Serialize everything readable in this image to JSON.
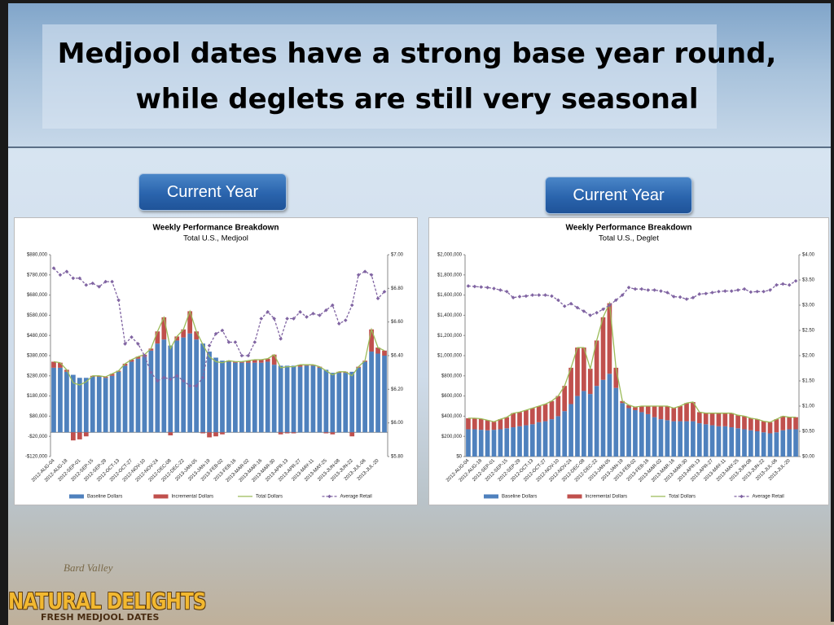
{
  "slide_title": [
    "Medjool dates have a strong base year round,",
    "while deglets are still very seasonal"
  ],
  "buttons": [
    "Current Year",
    "Current Year"
  ],
  "logo": {
    "script": "Bard Valley",
    "brand": "NATURAL DELIGHTS",
    "tagline": "FRESH MEDJOOL DATES"
  },
  "chart_data": [
    {
      "type": "combo",
      "stacked": true,
      "grid": false,
      "legend": "bottom",
      "title": "Weekly Performance Breakdown",
      "subtitle": "Total U.S., Medjool",
      "categories": [
        "2012-AUG-04",
        null,
        "2012-AUG-18",
        null,
        "2012-SEP-01",
        null,
        "2012-SEP-15",
        null,
        "2012-SEP-29",
        null,
        "2012-OCT-13",
        null,
        "2012-OCT-27",
        null,
        "2012-NOV-10",
        null,
        "2012-NOV-24",
        null,
        "2012-DEC-08",
        null,
        "2012-DEC-22",
        null,
        "2013-JAN-05",
        null,
        "2013-JAN-19",
        null,
        "2013-FEB-02",
        null,
        "2013-FEB-16",
        null,
        "2013-MAR-02",
        null,
        "2013-MAR-16",
        null,
        "2013-MAR-30",
        null,
        "2013-APR-13",
        null,
        "2013-APR-27",
        null,
        "2013-MAY-11",
        null,
        "2013-MAY-25",
        null,
        "2013-JUN-08",
        null,
        "2013-JUN-22",
        null,
        "2013-JUL-06",
        null,
        "2013-JUL-20",
        null
      ],
      "ylim": [
        -120000,
        880000
      ],
      "yticks": [
        {
          "value": -120000,
          "label": "-$120,000"
        },
        {
          "value": -20000,
          "label": "-$20,000"
        },
        {
          "value": 80000,
          "label": "$80,000"
        },
        {
          "value": 180000,
          "label": "$180,000"
        },
        {
          "value": 280000,
          "label": "$280,000"
        },
        {
          "value": 380000,
          "label": "$380,000"
        },
        {
          "value": 480000,
          "label": "$480,000"
        },
        {
          "value": 580000,
          "label": "$580,000"
        },
        {
          "value": 680000,
          "label": "$680,000"
        },
        {
          "value": 780000,
          "label": "$780,000"
        },
        {
          "value": 880000,
          "label": "$880,000"
        }
      ],
      "y2lim": [
        5.8,
        7.0
      ],
      "y2ticks": [
        {
          "value": 5.8,
          "label": "$5.80"
        },
        {
          "value": 6.0,
          "label": "$6.00"
        },
        {
          "value": 6.2,
          "label": "$6.20"
        },
        {
          "value": 6.4,
          "label": "$6.40"
        },
        {
          "value": 6.6,
          "label": "$6.60"
        },
        {
          "value": 6.8,
          "label": "$6.80"
        },
        {
          "value": 7.0,
          "label": "$7.00"
        }
      ],
      "series": [
        {
          "name": "Baseline Dollars",
          "type": "bar",
          "color": "#4f81bd",
          "values": [
            320000,
            320000,
            300000,
            285000,
            270000,
            270000,
            275000,
            275000,
            270000,
            280000,
            300000,
            330000,
            350000,
            365000,
            375000,
            405000,
            440000,
            460000,
            430000,
            455000,
            470000,
            490000,
            460000,
            440000,
            400000,
            370000,
            355000,
            350000,
            345000,
            345000,
            345000,
            345000,
            345000,
            350000,
            335000,
            330000,
            330000,
            330000,
            325000,
            330000,
            330000,
            320000,
            310000,
            295000,
            295000,
            295000,
            300000,
            320000,
            350000,
            400000,
            390000,
            380000
          ]
        },
        {
          "name": "Incremental Dollars",
          "type": "bar",
          "color": "#c0504d",
          "values": [
            30000,
            25000,
            10000,
            -40000,
            -35000,
            -20000,
            5000,
            5000,
            5000,
            10000,
            5000,
            10000,
            10000,
            10000,
            10000,
            10000,
            60000,
            110000,
            -15000,
            20000,
            40000,
            110000,
            40000,
            -5000,
            -25000,
            -20000,
            -10000,
            5000,
            5000,
            5000,
            10000,
            15000,
            15000,
            15000,
            50000,
            -10000,
            -5000,
            -5000,
            10000,
            5000,
            5000,
            5000,
            -5000,
            -10000,
            5000,
            5000,
            -20000,
            5000,
            5000,
            110000,
            30000,
            25000
          ]
        },
        {
          "name": "Total Dollars",
          "type": "line",
          "color": "#9bbb59",
          "values": [
            350000,
            345000,
            310000,
            245000,
            235000,
            250000,
            280000,
            280000,
            275000,
            290000,
            305000,
            340000,
            360000,
            375000,
            385000,
            415000,
            500000,
            570000,
            415000,
            475000,
            510000,
            600000,
            500000,
            435000,
            375000,
            350000,
            345000,
            355000,
            350000,
            350000,
            355000,
            360000,
            360000,
            365000,
            385000,
            320000,
            325000,
            325000,
            335000,
            335000,
            335000,
            325000,
            305000,
            285000,
            300000,
            300000,
            280000,
            325000,
            355000,
            510000,
            420000,
            405000
          ]
        },
        {
          "name": "Average Retail",
          "type": "line",
          "axis": "y2",
          "dashed": true,
          "marker": "diamond",
          "color": "#8064a2",
          "values": [
            6.92,
            6.88,
            6.9,
            6.86,
            6.86,
            6.82,
            6.83,
            6.81,
            6.84,
            6.84,
            6.73,
            6.47,
            6.51,
            6.47,
            6.4,
            6.3,
            6.25,
            6.27,
            6.26,
            6.28,
            6.25,
            6.22,
            6.22,
            6.27,
            6.46,
            6.53,
            6.55,
            6.48,
            6.48,
            6.4,
            6.4,
            6.48,
            6.62,
            6.66,
            6.62,
            6.5,
            6.62,
            6.62,
            6.66,
            6.63,
            6.65,
            6.64,
            6.67,
            6.7,
            6.59,
            6.61,
            6.7,
            6.88,
            6.9,
            6.88,
            6.74,
            6.78
          ]
        }
      ]
    },
    {
      "type": "combo",
      "stacked": true,
      "grid": false,
      "legend": "bottom",
      "title": "Weekly Performance Breakdown",
      "subtitle": "Total U.S., Deglet",
      "categories": [
        "2012-AUG-04",
        null,
        "2012-AUG-18",
        null,
        "2012-SEP-01",
        null,
        "2012-SEP-15",
        null,
        "2012-SEP-29",
        null,
        "2012-OCT-13",
        null,
        "2012-OCT-27",
        null,
        "2012-NOV-10",
        null,
        "2012-NOV-24",
        null,
        "2012-DEC-08",
        null,
        "2012-DEC-22",
        null,
        "2013-JAN-05",
        null,
        "2013-JAN-19",
        null,
        "2013-FEB-02",
        null,
        "2013-FEB-16",
        null,
        "2013-MAR-02",
        null,
        "2013-MAR-16",
        null,
        "2013-MAR-30",
        null,
        "2013-APR-13",
        null,
        "2013-APR-27",
        null,
        "2013-MAY-11",
        null,
        "2013-MAY-25",
        null,
        "2013-JUN-08",
        null,
        "2013-JUN-22",
        null,
        "2013-JUL-06",
        null,
        "2013-JUL-20",
        null
      ],
      "ylim": [
        0,
        2000000
      ],
      "yticks": [
        {
          "value": 0,
          "label": "$0"
        },
        {
          "value": 200000,
          "label": "$200,000"
        },
        {
          "value": 400000,
          "label": "$400,000"
        },
        {
          "value": 600000,
          "label": "$600,000"
        },
        {
          "value": 800000,
          "label": "$800,000"
        },
        {
          "value": 1000000,
          "label": "$1,000,000"
        },
        {
          "value": 1200000,
          "label": "$1,200,000"
        },
        {
          "value": 1400000,
          "label": "$1,400,000"
        },
        {
          "value": 1600000,
          "label": "$1,600,000"
        },
        {
          "value": 1800000,
          "label": "$1,800,000"
        },
        {
          "value": 2000000,
          "label": "$2,000,000"
        }
      ],
      "y2lim": [
        0,
        4.0
      ],
      "y2ticks": [
        {
          "value": 0,
          "label": "$0.00"
        },
        {
          "value": 0.5,
          "label": "$0.50"
        },
        {
          "value": 1.0,
          "label": "$1.00"
        },
        {
          "value": 1.5,
          "label": "$1.50"
        },
        {
          "value": 2.0,
          "label": "$2.00"
        },
        {
          "value": 2.5,
          "label": "$2.50"
        },
        {
          "value": 3.0,
          "label": "$3.00"
        },
        {
          "value": 3.5,
          "label": "$3.50"
        },
        {
          "value": 4.0,
          "label": "$4.00"
        }
      ],
      "series": [
        {
          "name": "Baseline Dollars",
          "type": "bar",
          "color": "#4f81bd",
          "values": [
            270000,
            270000,
            265000,
            260000,
            265000,
            270000,
            280000,
            290000,
            300000,
            310000,
            320000,
            340000,
            350000,
            370000,
            400000,
            450000,
            520000,
            600000,
            650000,
            620000,
            700000,
            760000,
            820000,
            680000,
            530000,
            480000,
            460000,
            440000,
            420000,
            390000,
            370000,
            360000,
            350000,
            350000,
            350000,
            350000,
            330000,
            320000,
            310000,
            300000,
            300000,
            290000,
            280000,
            270000,
            260000,
            250000,
            240000,
            230000,
            240000,
            260000,
            270000,
            270000
          ]
        },
        {
          "name": "Incremental Dollars",
          "type": "bar",
          "color": "#c0504d",
          "values": [
            110000,
            110000,
            110000,
            100000,
            80000,
            100000,
            110000,
            140000,
            140000,
            150000,
            160000,
            160000,
            170000,
            180000,
            200000,
            250000,
            360000,
            480000,
            430000,
            250000,
            450000,
            620000,
            700000,
            200000,
            20000,
            30000,
            30000,
            60000,
            80000,
            110000,
            130000,
            140000,
            130000,
            150000,
            180000,
            190000,
            110000,
            110000,
            120000,
            130000,
            130000,
            140000,
            130000,
            130000,
            120000,
            120000,
            110000,
            110000,
            130000,
            140000,
            120000,
            120000
          ]
        },
        {
          "name": "Total Dollars",
          "type": "line",
          "color": "#9bbb59",
          "values": [
            380000,
            380000,
            375000,
            360000,
            345000,
            370000,
            390000,
            430000,
            440000,
            460000,
            480000,
            500000,
            520000,
            550000,
            600000,
            700000,
            880000,
            1080000,
            1080000,
            870000,
            1150000,
            1380000,
            1520000,
            880000,
            550000,
            510000,
            490000,
            500000,
            500000,
            500000,
            500000,
            500000,
            480000,
            500000,
            530000,
            540000,
            440000,
            430000,
            430000,
            430000,
            430000,
            430000,
            410000,
            400000,
            380000,
            370000,
            350000,
            340000,
            370000,
            400000,
            390000,
            390000
          ]
        },
        {
          "name": "Average Retail",
          "type": "line",
          "axis": "y2",
          "dashed": true,
          "marker": "diamond",
          "color": "#8064a2",
          "values": [
            3.38,
            3.37,
            3.36,
            3.35,
            3.33,
            3.3,
            3.27,
            3.15,
            3.17,
            3.18,
            3.2,
            3.2,
            3.2,
            3.18,
            3.1,
            2.98,
            3.03,
            2.95,
            2.88,
            2.8,
            2.85,
            2.92,
            3.0,
            3.1,
            3.2,
            3.35,
            3.32,
            3.32,
            3.3,
            3.3,
            3.28,
            3.25,
            3.17,
            3.16,
            3.12,
            3.15,
            3.22,
            3.23,
            3.25,
            3.27,
            3.28,
            3.28,
            3.3,
            3.32,
            3.26,
            3.27,
            3.27,
            3.3,
            3.4,
            3.42,
            3.4,
            3.48
          ]
        }
      ]
    }
  ]
}
